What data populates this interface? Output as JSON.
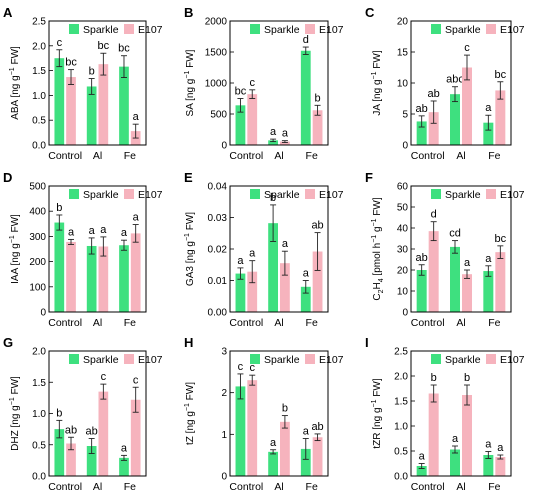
{
  "colors": {
    "sparkle": "#3ee07f",
    "e107": "#f6b3bd",
    "axis": "#000000"
  },
  "chart_data": [
    {
      "panel": "A",
      "type": "bar",
      "categories": [
        "Control",
        "Al",
        "Fe"
      ],
      "ylabel_main": "ABA",
      "ylabel_unit": "[ng g",
      "ylabel_sup": "−1",
      "ylabel_tail": " FW]",
      "ylim": [
        0,
        2.5
      ],
      "yticks": [
        "0.0",
        "0.5",
        "1.0",
        "1.5",
        "2.0",
        "2.5"
      ],
      "series": [
        {
          "name": "Sparkle",
          "values": [
            1.75,
            1.18,
            1.58
          ],
          "errors": [
            0.17,
            0.16,
            0.22
          ],
          "letters": [
            "c",
            "b",
            "bc"
          ]
        },
        {
          "name": "E107",
          "values": [
            1.37,
            1.63,
            0.28
          ],
          "errors": [
            0.15,
            0.22,
            0.14
          ],
          "letters": [
            "bc",
            "bc",
            "a"
          ]
        }
      ]
    },
    {
      "panel": "B",
      "type": "bar",
      "categories": [
        "Control",
        "Al",
        "Fe"
      ],
      "ylabel_main": "SA",
      "ylabel_unit": "[ng g",
      "ylabel_sup": "−1",
      "ylabel_tail": " FW]",
      "ylim": [
        0,
        2000
      ],
      "yticks": [
        "0",
        "500",
        "1000",
        "1500",
        "2000"
      ],
      "series": [
        {
          "name": "Sparkle",
          "values": [
            640,
            75,
            1520
          ],
          "errors": [
            110,
            20,
            60
          ],
          "letters": [
            "bc",
            "a",
            "d"
          ]
        },
        {
          "name": "E107",
          "values": [
            820,
            55,
            560
          ],
          "errors": [
            70,
            15,
            80
          ],
          "letters": [
            "c",
            "a",
            "b"
          ]
        }
      ]
    },
    {
      "panel": "C",
      "type": "bar",
      "categories": [
        "Control",
        "Al",
        "Fe"
      ],
      "ylabel_main": "JA",
      "ylabel_unit": "[ng g",
      "ylabel_sup": "−1",
      "ylabel_tail": " FW]",
      "ylim": [
        0,
        20
      ],
      "yticks": [
        "0",
        "5",
        "10",
        "15",
        "20"
      ],
      "series": [
        {
          "name": "Sparkle",
          "values": [
            3.8,
            8.2,
            3.6
          ],
          "errors": [
            0.9,
            1.2,
            1.2
          ],
          "letters": [
            "ab",
            "abc",
            "a"
          ]
        },
        {
          "name": "E107",
          "values": [
            5.3,
            12.5,
            8.8
          ],
          "errors": [
            1.8,
            2.0,
            1.4
          ],
          "letters": [
            "ab",
            "c",
            "bc"
          ]
        }
      ]
    },
    {
      "panel": "D",
      "type": "bar",
      "categories": [
        "Control",
        "Al",
        "Fe"
      ],
      "ylabel_main": "IAA",
      "ylabel_unit": "[ng g",
      "ylabel_sup": "−1",
      "ylabel_tail": " FW]",
      "ylim": [
        0,
        500
      ],
      "yticks": [
        "0",
        "100",
        "200",
        "300",
        "400",
        "500"
      ],
      "series": [
        {
          "name": "Sparkle",
          "values": [
            355,
            262,
            265
          ],
          "errors": [
            30,
            32,
            20
          ],
          "letters": [
            "b",
            "a",
            "a"
          ]
        },
        {
          "name": "E107",
          "values": [
            278,
            260,
            312
          ],
          "errors": [
            10,
            38,
            35
          ],
          "letters": [
            "a",
            "a",
            "a"
          ]
        }
      ]
    },
    {
      "panel": "E",
      "type": "bar",
      "categories": [
        "Control",
        "Al",
        "Fe"
      ],
      "ylabel_main": "GA3",
      "ylabel_unit": "[ng g",
      "ylabel_sup": "−1",
      "ylabel_tail": " FW]",
      "ylim": [
        0,
        0.04
      ],
      "yticks": [
        "0.00",
        "0.01",
        "0.02",
        "0.03",
        "0.04"
      ],
      "series": [
        {
          "name": "Sparkle",
          "values": [
            0.0122,
            0.0282,
            0.008
          ],
          "errors": [
            0.0018,
            0.0058,
            0.002
          ],
          "letters": [
            "a",
            "b",
            "a"
          ]
        },
        {
          "name": "E107",
          "values": [
            0.0128,
            0.0155,
            0.0192
          ],
          "errors": [
            0.0035,
            0.0038,
            0.006
          ],
          "letters": [
            "a",
            "a",
            "ab"
          ]
        }
      ]
    },
    {
      "panel": "F",
      "type": "bar",
      "categories": [
        "Control",
        "Al",
        "Fe"
      ],
      "ylabel_main": "C",
      "ylabel_sub": "2",
      "ylabel_mid": "H",
      "ylabel_sub2": "4",
      "ylabel_unit": " [pmol h",
      "ylabel_sup": "−1",
      "ylabel_tail": " g",
      "ylabel_sup2": "−1",
      "ylabel_tail2": " FW]",
      "ylim": [
        0,
        60
      ],
      "yticks": [
        "0",
        "10",
        "20",
        "30",
        "40",
        "50",
        "60"
      ],
      "series": [
        {
          "name": "Sparkle",
          "values": [
            20,
            31,
            19.5
          ],
          "errors": [
            2.5,
            3,
            2.5
          ],
          "letters": [
            "ab",
            "cd",
            "a"
          ]
        },
        {
          "name": "E107",
          "values": [
            38.5,
            18,
            28.5
          ],
          "errors": [
            4.5,
            2,
            3
          ],
          "letters": [
            "d",
            "a",
            "bc"
          ]
        }
      ]
    },
    {
      "panel": "G",
      "type": "bar",
      "categories": [
        "Control",
        "Al",
        "Fe"
      ],
      "ylabel_main": "DHZ",
      "ylabel_unit": "[ng g",
      "ylabel_sup": "−1",
      "ylabel_tail": " FW]",
      "ylim": [
        0,
        2.0
      ],
      "yticks": [
        "0.0",
        "0.5",
        "1.0",
        "1.5",
        "2.0"
      ],
      "series": [
        {
          "name": "Sparkle",
          "values": [
            0.75,
            0.48,
            0.29
          ],
          "errors": [
            0.14,
            0.12,
            0.04
          ],
          "letters": [
            "b",
            "ab",
            "a"
          ]
        },
        {
          "name": "E107",
          "values": [
            0.52,
            1.35,
            1.22
          ],
          "errors": [
            0.1,
            0.12,
            0.2
          ],
          "letters": [
            "ab",
            "c",
            "c"
          ]
        }
      ]
    },
    {
      "panel": "H",
      "type": "bar",
      "categories": [
        "Control",
        "Al",
        "Fe"
      ],
      "ylabel_main": "tZ",
      "ylabel_unit": "[ng g",
      "ylabel_sup": "−1",
      "ylabel_tail": " FW]",
      "ylim": [
        0,
        3
      ],
      "yticks": [
        "0",
        "1",
        "2",
        "3"
      ],
      "series": [
        {
          "name": "Sparkle",
          "values": [
            2.15,
            0.58,
            0.65
          ],
          "errors": [
            0.3,
            0.05,
            0.25
          ],
          "letters": [
            "c",
            "a",
            "a"
          ]
        },
        {
          "name": "E107",
          "values": [
            2.3,
            1.3,
            0.93
          ],
          "errors": [
            0.12,
            0.15,
            0.08
          ],
          "letters": [
            "c",
            "b",
            "ab"
          ]
        }
      ]
    },
    {
      "panel": "I",
      "type": "bar",
      "categories": [
        "Control",
        "Al",
        "Fe"
      ],
      "ylabel_main": "tZR",
      "ylabel_unit": "[ng g",
      "ylabel_sup": "−1",
      "ylabel_tail": " FW]",
      "ylim": [
        0,
        2.5
      ],
      "yticks": [
        "0.0",
        "0.5",
        "1.0",
        "1.5",
        "2.0",
        "2.5"
      ],
      "series": [
        {
          "name": "Sparkle",
          "values": [
            0.2,
            0.53,
            0.42
          ],
          "errors": [
            0.05,
            0.07,
            0.07
          ],
          "letters": [
            "a",
            "a",
            "a"
          ]
        },
        {
          "name": "E107",
          "values": [
            1.65,
            1.62,
            0.38
          ],
          "errors": [
            0.17,
            0.2,
            0.04
          ],
          "letters": [
            "b",
            "b",
            "a"
          ]
        }
      ]
    }
  ]
}
